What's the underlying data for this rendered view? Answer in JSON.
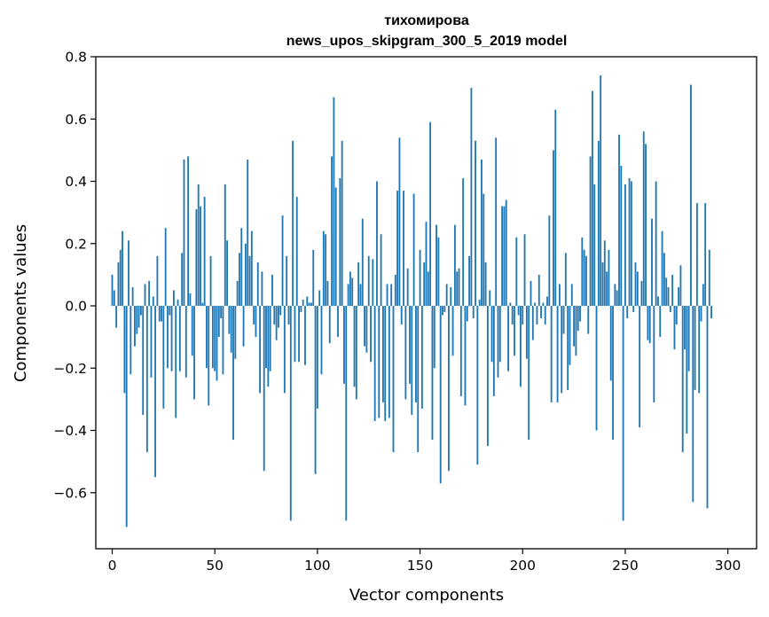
{
  "chart_data": {
    "type": "bar",
    "title_line1": "тихомирова",
    "title_line2": "news_upos_skipgram_300_5_2019 model",
    "xlabel": "Vector components",
    "ylabel": "Components values",
    "xlim": [
      -8,
      314
    ],
    "ylim": [
      -0.78,
      0.8
    ],
    "xticks": [
      0,
      50,
      100,
      150,
      200,
      250,
      300
    ],
    "yticks": [
      -0.6,
      -0.4,
      -0.2,
      0.0,
      0.2,
      0.4,
      0.6,
      0.8
    ],
    "ytick_labels": [
      "−0.6",
      "−0.4",
      "−0.2",
      "0.0",
      "0.2",
      "0.4",
      "0.6",
      "0.8"
    ],
    "bar_color": "#1f77b4",
    "grid": false,
    "values": [
      0.1,
      0.05,
      -0.07,
      0.14,
      0.18,
      0.24,
      -0.28,
      -0.71,
      0.21,
      -0.22,
      0.06,
      -0.13,
      -0.09,
      -0.07,
      -0.03,
      -0.35,
      0.07,
      -0.47,
      0.08,
      -0.23,
      0.03,
      -0.55,
      0.16,
      -0.05,
      -0.05,
      -0.33,
      0.25,
      -0.2,
      -0.03,
      -0.21,
      0.05,
      -0.36,
      0.02,
      -0.21,
      0.17,
      0.47,
      -0.23,
      0.48,
      0.04,
      -0.16,
      -0.3,
      0.31,
      0.39,
      0.32,
      0.01,
      0.35,
      -0.2,
      -0.32,
      0.16,
      -0.2,
      -0.21,
      -0.24,
      -0.1,
      -0.04,
      -0.22,
      0.39,
      0.21,
      -0.09,
      -0.15,
      -0.43,
      -0.17,
      0.08,
      0.17,
      0.25,
      -0.13,
      0.2,
      0.47,
      0.16,
      0.24,
      -0.06,
      -0.1,
      0.14,
      -0.28,
      0.11,
      -0.53,
      -0.2,
      -0.26,
      -0.21,
      0.1,
      -0.06,
      -0.11,
      -0.07,
      -0.03,
      0.29,
      -0.28,
      0.16,
      -0.06,
      -0.69,
      0.53,
      -0.18,
      0.35,
      -0.18,
      -0.02,
      0.02,
      -0.19,
      0.03,
      0.01,
      0.01,
      0.18,
      -0.54,
      -0.33,
      0.05,
      -0.22,
      0.24,
      0.23,
      0.08,
      -0.12,
      0.48,
      0.67,
      0.38,
      -0.1,
      0.41,
      0.53,
      -0.25,
      -0.69,
      0.07,
      0.11,
      0.09,
      -0.26,
      -0.3,
      0.14,
      0.07,
      0.28,
      -0.13,
      -0.15,
      0.16,
      -0.18,
      0.15,
      -0.37,
      0.4,
      -0.36,
      0.23,
      -0.31,
      -0.37,
      0.07,
      -0.36,
      0.07,
      -0.47,
      0.1,
      0.37,
      0.54,
      -0.06,
      0.37,
      -0.3,
      0.12,
      -0.25,
      -0.35,
      0.36,
      -0.31,
      -0.47,
      0.18,
      -0.33,
      0.14,
      0.27,
      0.11,
      0.59,
      -0.43,
      -0.2,
      0.26,
      0.22,
      -0.57,
      -0.03,
      -0.02,
      0.07,
      -0.53,
      0.06,
      -0.16,
      0.26,
      0.11,
      0.12,
      -0.29,
      0.41,
      -0.32,
      -0.05,
      0.16,
      0.7,
      -0.04,
      0.53,
      -0.51,
      0.02,
      0.47,
      0.36,
      0.14,
      -0.45,
      0.05,
      -0.18,
      -0.29,
      0.54,
      -0.23,
      -0.18,
      0.32,
      0.32,
      0.34,
      -0.21,
      0.01,
      -0.06,
      -0.16,
      0.22,
      -0.03,
      -0.26,
      -0.06,
      0.23,
      -0.17,
      -0.43,
      0.08,
      -0.11,
      0.01,
      -0.06,
      0.1,
      -0.04,
      0.01,
      -0.06,
      0.03,
      0.29,
      -0.31,
      0.5,
      0.63,
      -0.31,
      0.07,
      -0.28,
      -0.09,
      0.17,
      -0.27,
      -0.19,
      0.07,
      -0.13,
      -0.16,
      -0.08,
      -0.05,
      0.22,
      0.18,
      0.16,
      -0.09,
      0.48,
      0.69,
      0.39,
      -0.4,
      0.53,
      0.74,
      0.14,
      0.21,
      0.11,
      0.18,
      -0.24,
      -0.43,
      0.07,
      0.05,
      0.55,
      0.45,
      -0.69,
      0.39,
      -0.04,
      0.41,
      0.4,
      -0.02,
      0.14,
      0.11,
      -0.39,
      0.08,
      0.56,
      0.52,
      -0.11,
      -0.12,
      0.28,
      -0.31,
      0.4,
      0.03,
      -0.1,
      0.24,
      0.17,
      0.09,
      0.06,
      -0.02,
      0.1,
      -0.14,
      -0.06,
      0.06,
      0.13,
      -0.47,
      -0.14,
      -0.41,
      -0.21,
      0.71,
      -0.63,
      -0.27,
      0.33,
      -0.28,
      -0.05,
      0.07,
      0.33,
      -0.65,
      0.18,
      -0.04
    ]
  }
}
